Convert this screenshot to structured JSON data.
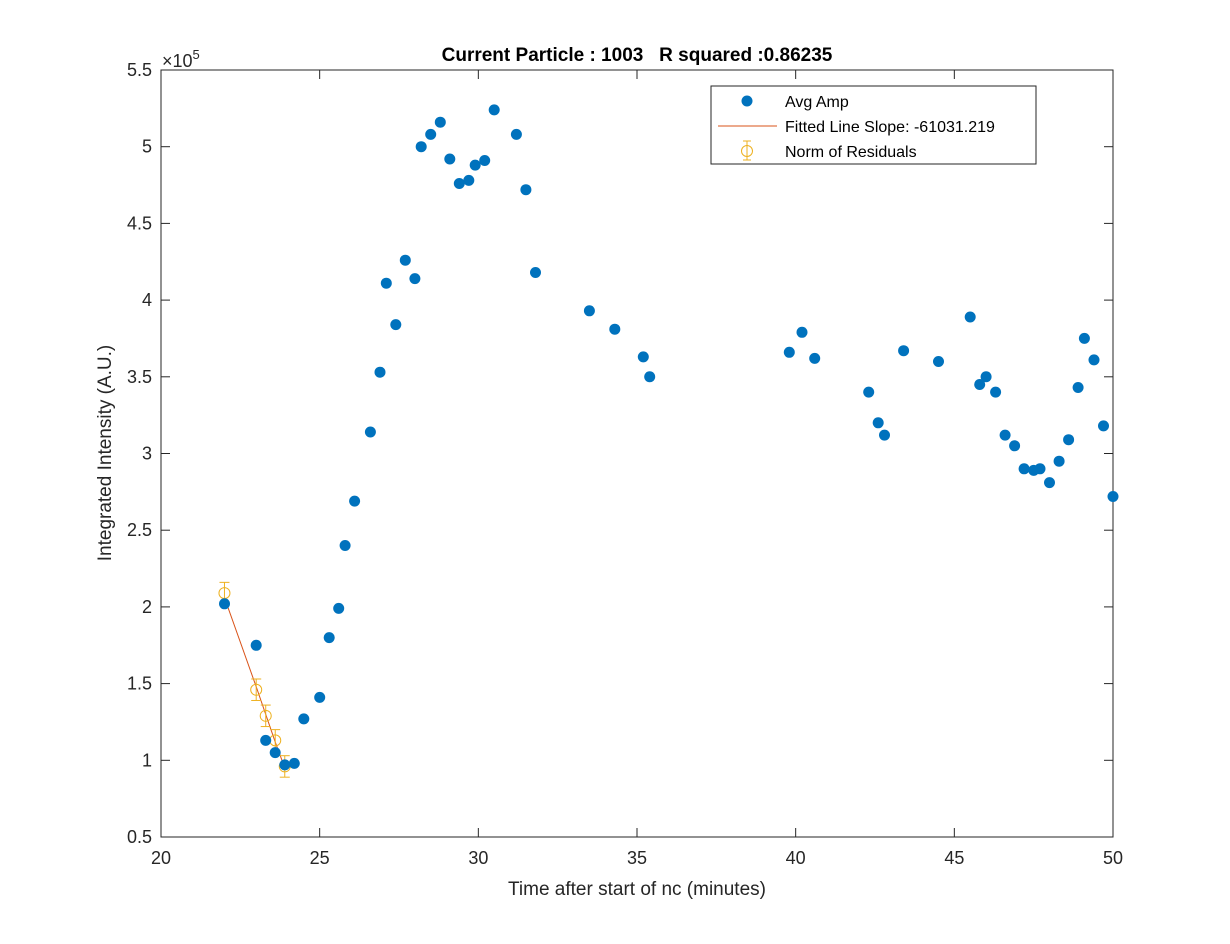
{
  "chart_data": {
    "type": "scatter",
    "title": "Current Particle : 1003   R squared :0.86235",
    "xlabel": "Time after start of nc (minutes)",
    "ylabel": "Integrated Intensity (A.U.)",
    "y_exponent_label": "×10",
    "y_exponent_power": "5",
    "xlim": [
      20,
      50
    ],
    "ylim": [
      0.5,
      5.5
    ],
    "y_scale_note": "values in units of 1e5",
    "x_ticks": [
      20,
      25,
      30,
      35,
      40,
      45,
      50
    ],
    "x_tick_labels": [
      "20",
      "25",
      "30",
      "35",
      "40",
      "45",
      "50"
    ],
    "y_ticks": [
      0.5,
      1,
      1.5,
      2,
      2.5,
      3,
      3.5,
      4,
      4.5,
      5,
      5.5
    ],
    "y_tick_labels": [
      "0.5",
      "1",
      "1.5",
      "2",
      "2.5",
      "3",
      "3.5",
      "4",
      "4.5",
      "5",
      "5.5"
    ],
    "grid": false,
    "legend_position": "top-right",
    "series": [
      {
        "name": "Avg Amp",
        "kind": "markers",
        "color": "#0072BD",
        "points": [
          [
            22.0,
            2.02
          ],
          [
            23.0,
            1.75
          ],
          [
            23.3,
            1.13
          ],
          [
            23.6,
            1.05
          ],
          [
            23.9,
            0.97
          ],
          [
            24.2,
            0.98
          ],
          [
            24.5,
            1.27
          ],
          [
            25.0,
            1.41
          ],
          [
            25.3,
            1.8
          ],
          [
            25.6,
            1.99
          ],
          [
            25.8,
            2.4
          ],
          [
            26.1,
            2.69
          ],
          [
            26.6,
            3.14
          ],
          [
            26.9,
            3.53
          ],
          [
            27.1,
            4.11
          ],
          [
            27.4,
            3.84
          ],
          [
            27.7,
            4.26
          ],
          [
            28.0,
            4.14
          ],
          [
            28.2,
            5.0
          ],
          [
            28.5,
            5.08
          ],
          [
            28.8,
            5.16
          ],
          [
            29.1,
            4.92
          ],
          [
            29.4,
            4.76
          ],
          [
            29.7,
            4.78
          ],
          [
            29.9,
            4.88
          ],
          [
            30.2,
            4.91
          ],
          [
            30.5,
            5.24
          ],
          [
            31.2,
            5.08
          ],
          [
            31.5,
            4.72
          ],
          [
            31.8,
            4.18
          ],
          [
            33.5,
            3.93
          ],
          [
            34.3,
            3.81
          ],
          [
            35.2,
            3.63
          ],
          [
            35.4,
            3.5
          ],
          [
            39.8,
            3.66
          ],
          [
            40.2,
            3.79
          ],
          [
            40.6,
            3.62
          ],
          [
            42.3,
            3.4
          ],
          [
            42.6,
            3.2
          ],
          [
            42.8,
            3.12
          ],
          [
            43.4,
            3.67
          ],
          [
            44.5,
            3.6
          ],
          [
            45.5,
            3.89
          ],
          [
            45.8,
            3.45
          ],
          [
            46.0,
            3.5
          ],
          [
            46.3,
            3.4
          ],
          [
            46.6,
            3.12
          ],
          [
            46.9,
            3.05
          ],
          [
            47.2,
            2.9
          ],
          [
            47.5,
            2.89
          ],
          [
            47.7,
            2.9
          ],
          [
            48.0,
            2.81
          ],
          [
            48.3,
            2.95
          ],
          [
            48.6,
            3.09
          ],
          [
            48.9,
            3.43
          ],
          [
            49.1,
            3.75
          ],
          [
            49.4,
            3.61
          ],
          [
            49.7,
            3.18
          ],
          [
            50.0,
            2.72
          ]
        ]
      },
      {
        "name": "Fitted Line Slope: -61031.219",
        "kind": "line",
        "color": "#D95319",
        "points": [
          [
            22.0,
            2.06
          ],
          [
            23.0,
            1.48
          ],
          [
            23.3,
            1.3
          ],
          [
            23.6,
            1.12
          ],
          [
            23.9,
            0.95
          ]
        ]
      },
      {
        "name": "Norm of Residuals",
        "kind": "errorbar",
        "color": "#EDB120",
        "points": [
          [
            22.0,
            2.09
          ],
          [
            23.0,
            1.46
          ],
          [
            23.3,
            1.29
          ],
          [
            23.6,
            1.13
          ],
          [
            23.9,
            0.96
          ]
        ],
        "error": [
          0.07,
          0.07,
          0.07,
          0.07,
          0.07
        ]
      }
    ]
  }
}
